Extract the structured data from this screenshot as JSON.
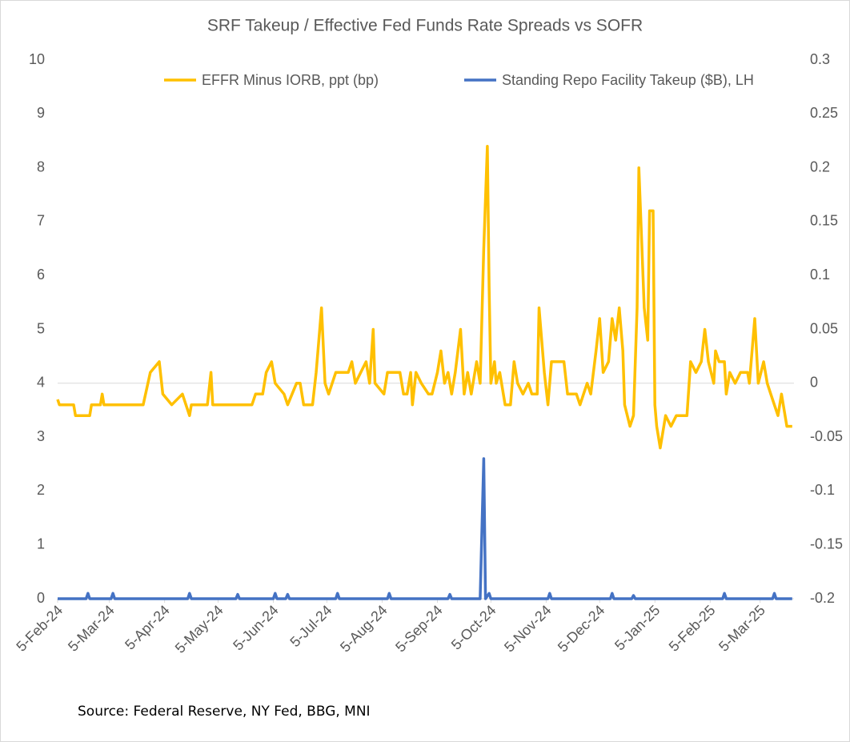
{
  "chart_data": {
    "type": "line",
    "title": "SRF Takeup / Effective Fed Funds Rate Spreads vs SOFR",
    "source": "Source: Federal Reserve, NY Fed, BBG, MNI",
    "legend": "top",
    "xlim": [
      "2024-02-05",
      "2025-03-24"
    ],
    "xticks": [
      {
        "value": "2024-02-05",
        "label": "5-Feb-24"
      },
      {
        "value": "2024-03-05",
        "label": "5-Mar-24"
      },
      {
        "value": "2024-04-05",
        "label": "5-Apr-24"
      },
      {
        "value": "2024-05-05",
        "label": "5-May-24"
      },
      {
        "value": "2024-06-05",
        "label": "5-Jun-24"
      },
      {
        "value": "2024-07-05",
        "label": "5-Jul-24"
      },
      {
        "value": "2024-08-05",
        "label": "5-Aug-24"
      },
      {
        "value": "2024-09-05",
        "label": "5-Sep-24"
      },
      {
        "value": "2024-10-05",
        "label": "5-Oct-24"
      },
      {
        "value": "2024-11-05",
        "label": "5-Nov-24"
      },
      {
        "value": "2024-12-05",
        "label": "5-Dec-24"
      },
      {
        "value": "2025-01-05",
        "label": "5-Jan-25"
      },
      {
        "value": "2025-02-05",
        "label": "5-Feb-25"
      },
      {
        "value": "2025-03-05",
        "label": "5-Mar-25"
      }
    ],
    "ylim": [
      0,
      10
    ],
    "yticks": [
      0,
      1,
      2,
      3,
      4,
      5,
      6,
      7,
      8,
      9,
      10
    ],
    "y2lim": [
      -0.2,
      0.3
    ],
    "y2ticks": [
      -0.2,
      -0.15,
      -0.1,
      -0.05,
      0,
      0.05,
      0.1,
      0.15,
      0.2,
      0.25,
      0.3
    ],
    "series": [
      {
        "name": "EFFR Minus IORB, ppt (bp)",
        "color": "#FFC000",
        "axis": "y2",
        "x": [
          "2024-02-05",
          "2024-02-06",
          "2024-02-14",
          "2024-02-15",
          "2024-02-23",
          "2024-02-24",
          "2024-02-29",
          "2024-03-01",
          "2024-03-02",
          "2024-03-24",
          "2024-03-28",
          "2024-04-02",
          "2024-04-04",
          "2024-04-09",
          "2024-04-15",
          "2024-04-19",
          "2024-04-20",
          "2024-04-29",
          "2024-05-01",
          "2024-05-02",
          "2024-05-24",
          "2024-05-26",
          "2024-05-30",
          "2024-06-01",
          "2024-06-04",
          "2024-06-06",
          "2024-06-11",
          "2024-06-13",
          "2024-06-18",
          "2024-06-20",
          "2024-06-22",
          "2024-06-27",
          "2024-06-29",
          "2024-07-02",
          "2024-07-04",
          "2024-07-06",
          "2024-07-10",
          "2024-07-17",
          "2024-07-19",
          "2024-07-21",
          "2024-07-24",
          "2024-07-27",
          "2024-07-29",
          "2024-07-31",
          "2024-08-01",
          "2024-08-06",
          "2024-08-08",
          "2024-08-15",
          "2024-08-17",
          "2024-08-19",
          "2024-08-21",
          "2024-08-22",
          "2024-08-24",
          "2024-08-27",
          "2024-08-31",
          "2024-09-02",
          "2024-09-05",
          "2024-09-07",
          "2024-09-09",
          "2024-09-11",
          "2024-09-13",
          "2024-09-15",
          "2024-09-18",
          "2024-09-20",
          "2024-09-22",
          "2024-09-24",
          "2024-09-27",
          "2024-09-29",
          "2024-10-01",
          "2024-10-03",
          "2024-10-04",
          "2024-10-05",
          "2024-10-07",
          "2024-10-08",
          "2024-10-10",
          "2024-10-13",
          "2024-10-16",
          "2024-10-18",
          "2024-10-20",
          "2024-10-23",
          "2024-10-26",
          "2024-10-28",
          "2024-10-31",
          "2024-11-01",
          "2024-11-04",
          "2024-11-06",
          "2024-11-08",
          "2024-11-15",
          "2024-11-17",
          "2024-11-22",
          "2024-11-24",
          "2024-11-26",
          "2024-11-28",
          "2024-11-30",
          "2024-12-03",
          "2024-12-05",
          "2024-12-07",
          "2024-12-10",
          "2024-12-12",
          "2024-12-14",
          "2024-12-16",
          "2024-12-18",
          "2024-12-19",
          "2024-12-22",
          "2024-12-24",
          "2024-12-26",
          "2024-12-27",
          "2024-12-30",
          "2025-01-01",
          "2025-01-02",
          "2025-01-04",
          "2025-01-05",
          "2025-01-06",
          "2025-01-08",
          "2025-01-11",
          "2025-01-14",
          "2025-01-17",
          "2025-01-23",
          "2025-01-25",
          "2025-01-28",
          "2025-01-31",
          "2025-02-02",
          "2025-02-04",
          "2025-02-07",
          "2025-02-08",
          "2025-02-10",
          "2025-02-13",
          "2025-02-14",
          "2025-02-16",
          "2025-02-19",
          "2025-02-22",
          "2025-02-26",
          "2025-02-27",
          "2025-03-02",
          "2025-03-04",
          "2025-03-07",
          "2025-03-09",
          "2025-03-11",
          "2025-03-15",
          "2025-03-17",
          "2025-03-20",
          "2025-03-23"
        ],
        "values": [
          -0.015,
          -0.02,
          -0.02,
          -0.03,
          -0.03,
          -0.02,
          -0.02,
          -0.01,
          -0.02,
          -0.02,
          0.01,
          0.02,
          -0.01,
          -0.02,
          -0.01,
          -0.03,
          -0.02,
          -0.02,
          0.01,
          -0.02,
          -0.02,
          -0.01,
          -0.01,
          0.01,
          0.02,
          0,
          -0.01,
          -0.02,
          0,
          0,
          -0.02,
          -0.02,
          0.01,
          0.07,
          0,
          -0.01,
          0.01,
          0.01,
          0.02,
          0,
          0.01,
          0.02,
          0,
          0.05,
          0,
          -0.01,
          0.01,
          0.01,
          -0.01,
          -0.01,
          0.01,
          -0.02,
          0.01,
          0,
          -0.01,
          -0.01,
          0.01,
          0.03,
          0,
          0.01,
          -0.01,
          0.01,
          0.05,
          -0.01,
          0.01,
          -0.01,
          0.02,
          0,
          0.125,
          0.22,
          0.09,
          0,
          0.02,
          0,
          0.01,
          -0.02,
          -0.02,
          0.02,
          0,
          -0.01,
          0,
          -0.01,
          -0.01,
          0.07,
          0.01,
          -0.02,
          0.02,
          0.02,
          -0.01,
          -0.01,
          -0.02,
          -0.01,
          0,
          -0.01,
          0.03,
          0.06,
          0.01,
          0.02,
          0.06,
          0.04,
          0.07,
          0.03,
          -0.02,
          -0.04,
          -0.03,
          0.07,
          0.2,
          0.07,
          0.04,
          0.16,
          0.16,
          -0.02,
          -0.04,
          -0.06,
          -0.03,
          -0.04,
          -0.03,
          -0.03,
          0.02,
          0.01,
          0.02,
          0.05,
          0.02,
          0,
          0.03,
          0.02,
          0.02,
          -0.01,
          0.01,
          0,
          0.01,
          0.01,
          0,
          0.06,
          0,
          0.02,
          0,
          -0.01,
          -0.03,
          -0.01,
          -0.04,
          -0.04
        ]
      },
      {
        "name": "Standing Repo Facility Takeup ($B), LH",
        "color": "#4472C4",
        "axis": "y",
        "x": [
          "2024-02-05",
          "2024-02-21",
          "2024-02-22",
          "2024-02-23",
          "2024-03-06",
          "2024-03-07",
          "2024-03-08",
          "2024-04-18",
          "2024-04-19",
          "2024-04-20",
          "2024-05-15",
          "2024-05-16",
          "2024-05-17",
          "2024-06-05",
          "2024-06-06",
          "2024-06-07",
          "2024-06-12",
          "2024-06-13",
          "2024-06-14",
          "2024-07-10",
          "2024-07-11",
          "2024-07-12",
          "2024-08-08",
          "2024-08-09",
          "2024-08-10",
          "2024-09-11",
          "2024-09-12",
          "2024-09-13",
          "2024-09-29",
          "2024-10-01",
          "2024-10-02",
          "2024-10-04",
          "2024-10-05",
          "2024-11-06",
          "2024-11-07",
          "2024-11-08",
          "2024-12-11",
          "2024-12-12",
          "2024-12-13",
          "2024-12-23",
          "2024-12-24",
          "2024-12-25",
          "2025-02-12",
          "2025-02-13",
          "2025-02-14",
          "2025-03-12",
          "2025-03-13",
          "2025-03-14",
          "2025-03-23"
        ],
        "values": [
          0,
          0,
          0.1,
          0,
          0,
          0.1,
          0,
          0,
          0.1,
          0,
          0,
          0.08,
          0,
          0,
          0.1,
          0,
          0,
          0.08,
          0,
          0,
          0.1,
          0,
          0,
          0.1,
          0,
          0,
          0.08,
          0,
          0,
          2.6,
          0,
          0.1,
          0,
          0,
          0.1,
          0,
          0,
          0.1,
          0,
          0,
          0.06,
          0,
          0,
          0.1,
          0,
          0,
          0.1,
          0,
          0
        ]
      }
    ]
  }
}
